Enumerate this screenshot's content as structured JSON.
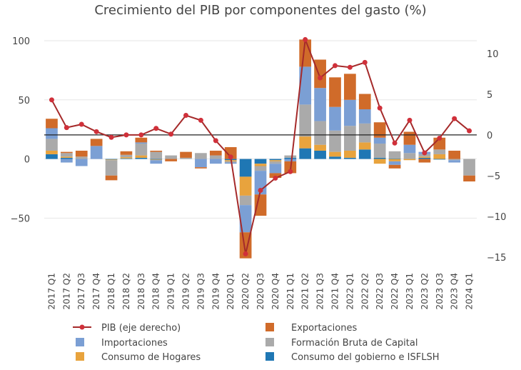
{
  "chart_data": {
    "type": "bar",
    "title": "Crecimiento del PIB por componentes del gasto (%)",
    "categories": [
      "2017 Q1",
      "2017 Q2",
      "2017 Q3",
      "2017 Q4",
      "2018 Q1",
      "2018 Q2",
      "2018 Q3",
      "2018 Q4",
      "2019 Q1",
      "2019 Q2",
      "2019 Q3",
      "2019 Q4",
      "2020 Q1",
      "2020 Q2",
      "2020 Q3",
      "2020 Q4",
      "2021 Q1",
      "2021 Q2",
      "2021 Q3",
      "2021 Q4",
      "2022 Q1",
      "2022 Q2",
      "2022 Q3",
      "2022 Q4",
      "2023 Q1",
      "2023 Q2",
      "2023 Q3",
      "2023 Q4",
      "2024 Q1"
    ],
    "left_axis": {
      "ylim": [
        -83,
        103
      ],
      "ticks": [
        -50,
        0,
        50,
        100
      ]
    },
    "right_axis": {
      "ylim": [
        -15,
        12
      ],
      "ticks": [
        -15,
        -10,
        -5,
        0,
        5,
        10
      ]
    },
    "stacked_series": [
      {
        "name": "Consumo del gobierno e ISFLSH",
        "color": "#1f77b4",
        "values": [
          4,
          1,
          0,
          0,
          -0.5,
          0.5,
          1,
          -0.5,
          0,
          0,
          0,
          0,
          -1,
          -15,
          -4,
          -1,
          1,
          9,
          7,
          2,
          1,
          8,
          1,
          0.5,
          0,
          1,
          -0.5,
          0,
          0
        ]
      },
      {
        "name": "Consumo de Hogares",
        "color": "#e8a33d",
        "values": [
          3,
          1,
          0,
          0,
          -0.5,
          1,
          2,
          -0.5,
          0,
          0,
          0,
          0,
          -1,
          -16,
          -2,
          -1,
          0,
          10,
          5,
          4,
          6,
          6,
          -4,
          -2,
          -1,
          1,
          4,
          0,
          0
        ]
      },
      {
        "name": "Formación Bruta de Capital",
        "color": "#aaaaaa",
        "values": [
          10,
          3,
          2,
          0,
          -13,
          2,
          10,
          6,
          3,
          1,
          5,
          3,
          -1,
          -8,
          -4,
          -2,
          2,
          27,
          20,
          18,
          21,
          16,
          12,
          6,
          5,
          2,
          4,
          -1,
          -14
        ]
      },
      {
        "name": "Importaciones",
        "color": "#7b9fd4",
        "values": [
          9,
          -3,
          -6,
          11,
          0,
          0,
          1,
          -3,
          0,
          0,
          -7,
          -4,
          -1,
          -23,
          -20,
          -8,
          -2,
          32,
          28,
          20,
          22,
          12,
          5,
          -3,
          7,
          2,
          0,
          -2,
          0
        ]
      },
      {
        "name": "Exportaciones",
        "color": "#d06b2a",
        "values": [
          8,
          1,
          5,
          6,
          -4,
          3,
          4,
          1,
          -2,
          5,
          -1,
          4,
          10,
          -22,
          -18,
          -4,
          -10,
          23,
          24,
          25,
          22,
          13,
          13,
          -3,
          11,
          -3,
          10,
          7,
          -5
        ]
      }
    ],
    "line_series": {
      "name": "PIB (eje derecho)",
      "color": "#a52a2a",
      "axis": "right",
      "values": [
        4.3,
        0.9,
        1.3,
        0.4,
        -0.3,
        0,
        0,
        0.8,
        0.1,
        2.4,
        1.8,
        -0.7,
        -2.7,
        -14.6,
        -6.8,
        -5.3,
        -4.5,
        11.7,
        7,
        8.5,
        8.3,
        8.9,
        3.3,
        -1,
        1.8,
        -2.2,
        -0.4,
        2,
        0.5
      ]
    },
    "legend": {
      "position": "bottom",
      "items": [
        {
          "name": "PIB (eje derecho)",
          "type": "line",
          "color": "#a52a2a"
        },
        {
          "name": "Exportaciones",
          "type": "box",
          "color": "#d06b2a"
        },
        {
          "name": "Importaciones",
          "type": "box",
          "color": "#7b9fd4"
        },
        {
          "name": "Formación Bruta de Capital",
          "type": "box",
          "color": "#aaaaaa"
        },
        {
          "name": "Consumo de Hogares",
          "type": "box",
          "color": "#e8a33d"
        },
        {
          "name": "Consumo del gobierno e ISFLSH",
          "type": "box",
          "color": "#1f77b4"
        }
      ]
    },
    "grid": true
  }
}
